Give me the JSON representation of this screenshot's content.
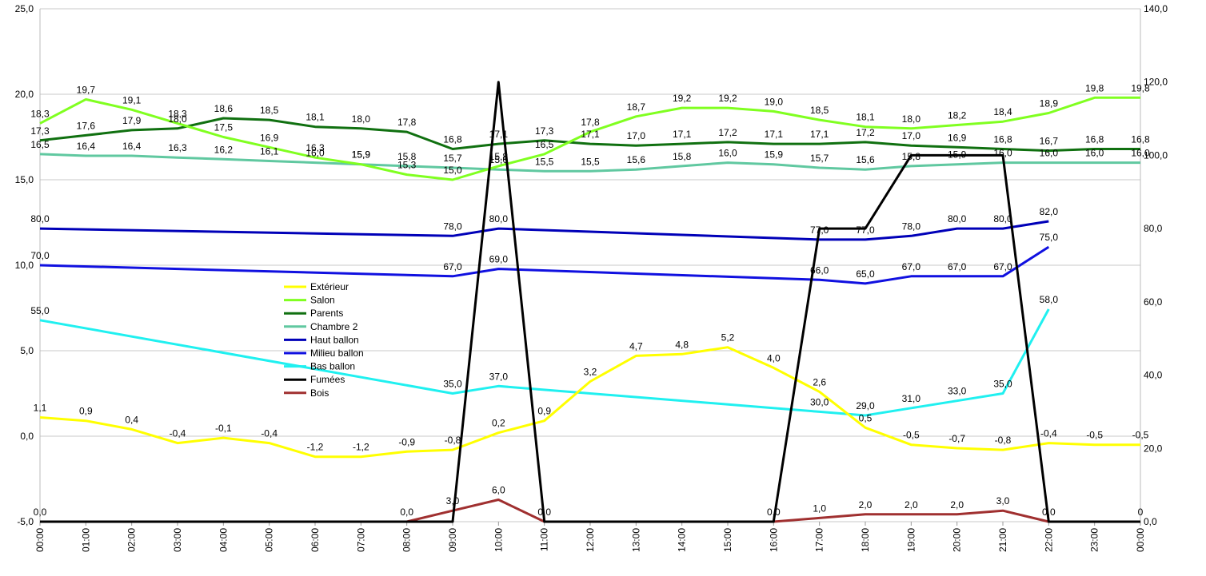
{
  "chart_data": {
    "type": "line",
    "title": "",
    "xlabel": "",
    "ylabel": "",
    "categories": [
      "00:00",
      "01:00",
      "02:00",
      "03:00",
      "04:00",
      "05:00",
      "06:00",
      "07:00",
      "08:00",
      "09:00",
      "10:00",
      "11:00",
      "12:00",
      "13:00",
      "14:00",
      "15:00",
      "16:00",
      "17:00",
      "18:00",
      "19:00",
      "20:00",
      "21:00",
      "22:00",
      "23:00",
      "00:00"
    ],
    "y_left": {
      "min": -5,
      "max": 25,
      "ticks": [
        "-5,0",
        "0,0",
        "5,0",
        "10,0",
        "15,0",
        "20,0",
        "25,0"
      ],
      "tick_values": [
        -5,
        0,
        5,
        10,
        15,
        20,
        25
      ]
    },
    "y_right": {
      "min": 0,
      "max": 140,
      "ticks": [
        "0,0",
        "20,0",
        "40,0",
        "60,0",
        "80,0",
        "100,0",
        "120,0",
        "140,0"
      ],
      "tick_values": [
        0,
        20,
        40,
        60,
        80,
        100,
        120,
        140
      ]
    },
    "grid": true,
    "legend_position": "middle-left",
    "series": [
      {
        "name": "Extérieur",
        "color": "#ffff00",
        "axis": "left",
        "values": [
          1.1,
          0.9,
          0.4,
          -0.4,
          -0.1,
          -0.4,
          -1.2,
          -1.2,
          -0.9,
          -0.8,
          0.2,
          0.9,
          3.2,
          4.7,
          4.8,
          5.2,
          4.0,
          2.6,
          0.5,
          -0.5,
          -0.7,
          -0.8,
          -0.4,
          -0.5,
          -0.5
        ],
        "labels": [
          "1,1",
          "0,9",
          "0,4",
          "-0,4",
          "-0,1",
          "-0,4",
          "-1,2",
          "-1,2",
          "-0,9",
          "-0,8",
          "0,2",
          "0,9",
          "3,2",
          "4,7",
          "4,8",
          "5,2",
          "4,0",
          "2,6",
          "0,5",
          "-0,5",
          "-0,7",
          "-0,8",
          "-0,4",
          "-0,5",
          "-0,5"
        ]
      },
      {
        "name": "Salon",
        "color": "#80ff20",
        "axis": "left",
        "values": [
          18.3,
          19.7,
          19.1,
          18.3,
          17.5,
          16.9,
          16.3,
          15.9,
          15.3,
          15.0,
          15.8,
          16.5,
          17.8,
          18.7,
          19.2,
          19.2,
          19.0,
          18.5,
          18.1,
          18.0,
          18.2,
          18.4,
          18.9,
          19.8,
          19.8
        ],
        "labels": [
          "18,3",
          "19,7",
          "19,1",
          "18,3",
          "17,5",
          "16,9",
          "16,3",
          "15,9",
          "15,3",
          "15,0",
          "15,8",
          "16,5",
          "17,8",
          "18,7",
          "19,2",
          "19,2",
          "19,0",
          "18,5",
          "18,1",
          "18,0",
          "18,2",
          "18,4",
          "18,9",
          "19,8",
          "19,8"
        ]
      },
      {
        "name": "Parents",
        "color": "#107010",
        "axis": "left",
        "values": [
          17.3,
          17.6,
          17.9,
          18.0,
          18.6,
          18.5,
          18.1,
          18.0,
          17.8,
          16.8,
          17.1,
          17.3,
          17.1,
          17.0,
          17.1,
          17.2,
          17.1,
          17.1,
          17.2,
          17.0,
          16.9,
          16.8,
          16.7,
          16.8,
          16.8
        ],
        "labels": [
          "17,3",
          "17,6",
          "17,9",
          "18,0",
          "18,6",
          "18,5",
          "18,1",
          "18,0",
          "17,8",
          "16,8",
          "17,1",
          "17,3",
          "17,1",
          "17,0",
          "17,1",
          "17,2",
          "17,1",
          "17,1",
          "17,2",
          "17,0",
          "16,9",
          "16,8",
          "16,7",
          "16,8",
          "16,8"
        ]
      },
      {
        "name": "Chambre 2",
        "color": "#60c8a0",
        "axis": "left",
        "values": [
          16.5,
          16.4,
          16.4,
          16.3,
          16.2,
          16.1,
          16.0,
          15.9,
          15.8,
          15.7,
          15.6,
          15.5,
          15.5,
          15.6,
          15.8,
          16.0,
          15.9,
          15.7,
          15.6,
          15.8,
          15.9,
          16.0,
          16.0,
          16.0,
          16.0
        ],
        "labels": [
          "16,5",
          "16,4",
          "16,4",
          "16,3",
          "16,2",
          "16,1",
          "16,0",
          "15,9",
          "15,8",
          "15,7",
          "15,6",
          "15,5",
          "15,5",
          "15,6",
          "15,8",
          "16,0",
          "15,9",
          "15,7",
          "15,6",
          "15,8",
          "15,9",
          "16,0",
          "16,0",
          "16,0",
          "16,0"
        ]
      },
      {
        "name": "Haut ballon",
        "color": "#0000b8",
        "axis": "right",
        "points": [
          [
            0,
            80
          ],
          [
            9,
            78
          ],
          [
            10,
            80
          ],
          [
            17,
            77
          ],
          [
            18,
            77
          ],
          [
            19,
            78
          ],
          [
            20,
            80
          ],
          [
            21,
            80
          ],
          [
            22,
            82
          ]
        ],
        "labels": [
          "80,0",
          "78,0",
          "80,0",
          "77,0",
          "77,0",
          "78,0",
          "80,0",
          "80,0",
          "82,0"
        ]
      },
      {
        "name": "Milieu ballon",
        "color": "#1010e0",
        "axis": "right",
        "points": [
          [
            0,
            70
          ],
          [
            9,
            67
          ],
          [
            10,
            69
          ],
          [
            17,
            66
          ],
          [
            18,
            65
          ],
          [
            19,
            67
          ],
          [
            20,
            67
          ],
          [
            21,
            67
          ],
          [
            22,
            75
          ]
        ],
        "labels": [
          "70,0",
          "67,0",
          "69,0",
          "66,0",
          "65,0",
          "67,0",
          "67,0",
          "67,0",
          "75,0"
        ]
      },
      {
        "name": "Bas ballon",
        "color": "#20f0f0",
        "axis": "right",
        "points": [
          [
            0,
            55
          ],
          [
            9,
            35
          ],
          [
            10,
            37
          ],
          [
            17,
            30
          ],
          [
            18,
            29
          ],
          [
            19,
            31
          ],
          [
            20,
            33
          ],
          [
            21,
            35
          ],
          [
            22,
            58
          ]
        ],
        "labels": [
          "55,0",
          "35,0",
          "37,0",
          "30,0",
          "29,0",
          "31,0",
          "33,0",
          "35,0",
          "58,0"
        ]
      },
      {
        "name": "Fumées",
        "color": "#000000",
        "axis": "right",
        "points": [
          [
            0,
            0
          ],
          [
            9,
            0
          ],
          [
            10,
            120
          ],
          [
            11,
            0
          ],
          [
            16,
            0
          ],
          [
            17,
            80
          ],
          [
            18,
            80
          ],
          [
            19,
            100
          ],
          [
            20,
            100
          ],
          [
            21,
            100
          ],
          [
            22,
            0
          ],
          [
            23,
            0
          ],
          [
            24,
            0
          ]
        ],
        "labels": []
      },
      {
        "name": "Bois",
        "color": "#a03030",
        "axis": "right",
        "points": [
          [
            0,
            0
          ],
          [
            8,
            0
          ],
          [
            9,
            3
          ],
          [
            10,
            6
          ],
          [
            11,
            0
          ],
          [
            16,
            0
          ],
          [
            17,
            1
          ],
          [
            18,
            2
          ],
          [
            19,
            2
          ],
          [
            20,
            2
          ],
          [
            21,
            3
          ],
          [
            22,
            0
          ],
          [
            23,
            0
          ],
          [
            24,
            0
          ]
        ],
        "labels": [
          "0,0",
          "0,0",
          "3,0",
          "6,0",
          "0,0",
          "0,0",
          "1,0",
          "2,0",
          "2,0",
          "2,0",
          "3,0",
          "0,0",
          "",
          "0"
        ]
      }
    ]
  }
}
